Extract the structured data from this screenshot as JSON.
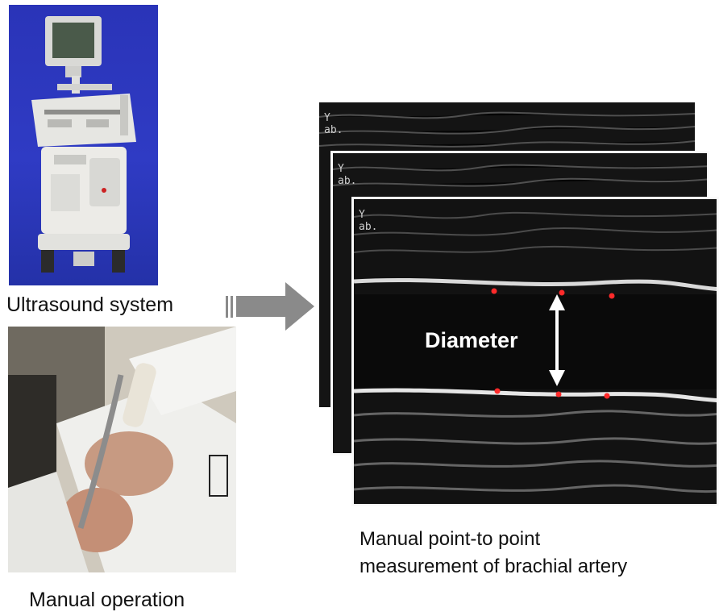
{
  "captions": {
    "ultrasound_system": "Ultrasound system",
    "manual_operation": "Manual operation",
    "measurement_line1": "Manual point-to point",
    "measurement_line2": "measurement of brachial artery"
  },
  "ultrasound_image": {
    "diameter_label": "Diameter",
    "corner_text_line1": "Y",
    "corner_text_line2": "ab."
  },
  "colors": {
    "photo_background": "#2f3bc4",
    "arrow": "#8a8a8a",
    "measurement_points": "#ff2a2a",
    "ultrasound_background": "#111111"
  }
}
